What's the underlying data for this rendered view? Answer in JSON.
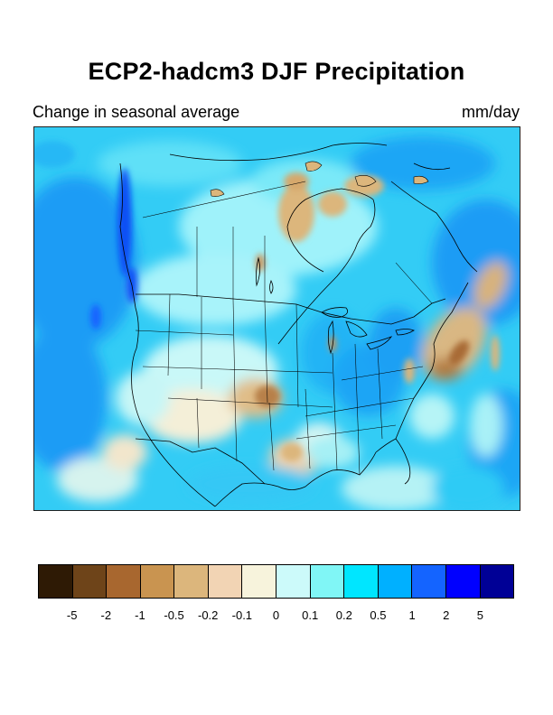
{
  "header": {
    "title": "ECP2-hadcm3 DJF Precipitation",
    "subtitle_left": "Change in seasonal average",
    "subtitle_right": "mm/day"
  },
  "map": {
    "region": "North America",
    "variable": "DJF precipitation change",
    "projection_boundaries": [
      "coastlines",
      "country borders",
      "US state borders",
      "Canadian province borders"
    ]
  },
  "colorbar": {
    "colors": [
      "#2e1a05",
      "#6e4419",
      "#a8672f",
      "#c99450",
      "#dcb67c",
      "#f2d4b4",
      "#f7f3dc",
      "#ccfafa",
      "#80f6f6",
      "#00e6ff",
      "#00b0ff",
      "#1464ff",
      "#0000ff",
      "#000096"
    ],
    "labels": [
      "-5",
      "-2",
      "-1",
      "-0.5",
      "-0.2",
      "-0.1",
      "0",
      "0.1",
      "0.2",
      "0.5",
      "1",
      "2",
      "5"
    ]
  }
}
